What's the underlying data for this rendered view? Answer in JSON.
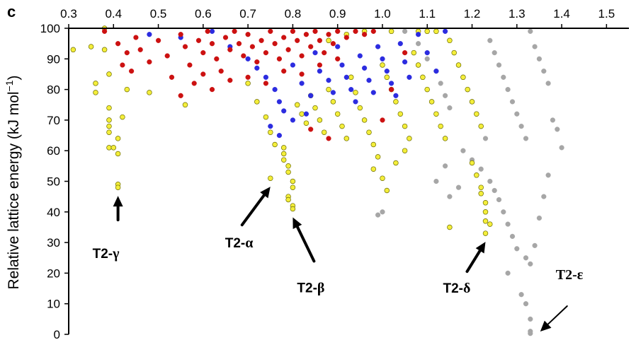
{
  "chart_data": {
    "type": "scatter",
    "panel_label": "c",
    "ylabel_main": "Relative lattice energy (kJ mol",
    "ylabel_sup": "−1",
    "ylabel_tail": ")",
    "xlim": [
      0.3,
      1.55
    ],
    "ylim": [
      0,
      100
    ],
    "x_ticks": [
      "0.3",
      "0.4",
      "0.5",
      "0.6",
      "0.7",
      "0.8",
      "0.9",
      "1.0",
      "1.1",
      "1.2",
      "1.3",
      "1.4",
      "1.5"
    ],
    "y_ticks": [
      "0",
      "10",
      "20",
      "30",
      "40",
      "50",
      "60",
      "70",
      "80",
      "90",
      "100"
    ],
    "x_axis_position": "top",
    "grid": false,
    "colors": {
      "red": "#cc1111",
      "blue": "#2c2ce0",
      "yellow": "#f4ee3a",
      "gray": "#a6a6a6",
      "yellow_edge": "#6b6b00"
    },
    "series": [
      {
        "color": "red",
        "points": [
          [
            0.38,
            99
          ],
          [
            0.41,
            95
          ],
          [
            0.42,
            88
          ],
          [
            0.43,
            92
          ],
          [
            0.44,
            86
          ],
          [
            0.45,
            97
          ],
          [
            0.46,
            93
          ],
          [
            0.48,
            89
          ],
          [
            0.5,
            96
          ],
          [
            0.52,
            91
          ],
          [
            0.53,
            84
          ],
          [
            0.55,
            98
          ],
          [
            0.56,
            94
          ],
          [
            0.57,
            88
          ],
          [
            0.58,
            82
          ],
          [
            0.59,
            96
          ],
          [
            0.6,
            92
          ],
          [
            0.61,
            99
          ],
          [
            0.62,
            95
          ],
          [
            0.63,
            90
          ],
          [
            0.64,
            86
          ],
          [
            0.65,
            97
          ],
          [
            0.66,
            93
          ],
          [
            0.67,
            99
          ],
          [
            0.68,
            95
          ],
          [
            0.69,
            91
          ],
          [
            0.7,
            98
          ],
          [
            0.71,
            94
          ],
          [
            0.72,
            89
          ],
          [
            0.73,
            96
          ],
          [
            0.74,
            92
          ],
          [
            0.75,
            99
          ],
          [
            0.76,
            95
          ],
          [
            0.77,
            90
          ],
          [
            0.78,
            97
          ],
          [
            0.79,
            93
          ],
          [
            0.8,
            99
          ],
          [
            0.81,
            96
          ],
          [
            0.82,
            91
          ],
          [
            0.83,
            98
          ],
          [
            0.84,
            94
          ],
          [
            0.85,
            99
          ],
          [
            0.86,
            96
          ],
          [
            0.87,
            92
          ],
          [
            0.88,
            98
          ],
          [
            0.89,
            95
          ],
          [
            0.9,
            99
          ],
          [
            0.92,
            97
          ],
          [
            0.94,
            99
          ],
          [
            0.96,
            98
          ],
          [
            0.98,
            99
          ],
          [
            0.55,
            78
          ],
          [
            0.6,
            85
          ],
          [
            0.62,
            80
          ],
          [
            0.66,
            83
          ],
          [
            0.7,
            84
          ],
          [
            0.74,
            82
          ],
          [
            0.78,
            86
          ],
          [
            0.82,
            85
          ],
          [
            0.86,
            88
          ],
          [
            0.9,
            90
          ],
          [
            1.0,
            70
          ],
          [
            1.02,
            80
          ],
          [
            1.05,
            92
          ],
          [
            0.88,
            64
          ],
          [
            0.84,
            67
          ]
        ]
      },
      {
        "color": "blue",
        "points": [
          [
            0.48,
            98
          ],
          [
            0.55,
            97
          ],
          [
            0.62,
            99
          ],
          [
            0.66,
            94
          ],
          [
            0.7,
            90
          ],
          [
            0.72,
            87
          ],
          [
            0.74,
            84
          ],
          [
            0.76,
            80
          ],
          [
            0.77,
            76
          ],
          [
            0.78,
            73
          ],
          [
            0.8,
            88
          ],
          [
            0.82,
            82
          ],
          [
            0.84,
            78
          ],
          [
            0.85,
            92
          ],
          [
            0.86,
            86
          ],
          [
            0.88,
            83
          ],
          [
            0.89,
            79
          ],
          [
            0.9,
            94
          ],
          [
            0.91,
            88
          ],
          [
            0.92,
            84
          ],
          [
            0.93,
            80
          ],
          [
            0.94,
            76
          ],
          [
            0.95,
            91
          ],
          [
            0.96,
            87
          ],
          [
            0.97,
            83
          ],
          [
            0.98,
            79
          ],
          [
            0.99,
            94
          ],
          [
            1.0,
            90
          ],
          [
            1.01,
            86
          ],
          [
            1.02,
            82
          ],
          [
            1.03,
            78
          ],
          [
            1.04,
            95
          ],
          [
            1.05,
            89
          ],
          [
            1.06,
            84
          ],
          [
            1.08,
            98
          ],
          [
            1.1,
            92
          ],
          [
            1.12,
            86
          ],
          [
            1.14,
            99
          ],
          [
            0.75,
            68
          ],
          [
            0.77,
            65
          ],
          [
            0.8,
            70
          ],
          [
            0.83,
            72
          ]
        ]
      },
      {
        "color": "yellow",
        "points": [
          [
            0.31,
            93
          ],
          [
            0.35,
            94
          ],
          [
            0.36,
            82
          ],
          [
            0.36,
            79
          ],
          [
            0.38,
            100
          ],
          [
            0.38,
            93
          ],
          [
            0.39,
            85
          ],
          [
            0.39,
            74
          ],
          [
            0.39,
            70
          ],
          [
            0.39,
            68
          ],
          [
            0.39,
            66
          ],
          [
            0.39,
            61
          ],
          [
            0.4,
            61
          ],
          [
            0.41,
            59
          ],
          [
            0.41,
            64
          ],
          [
            0.42,
            71
          ],
          [
            0.41,
            49
          ],
          [
            0.41,
            48
          ],
          [
            0.43,
            80
          ],
          [
            0.48,
            79
          ],
          [
            0.56,
            75
          ],
          [
            0.7,
            82
          ],
          [
            0.72,
            76
          ],
          [
            0.74,
            71
          ],
          [
            0.75,
            66
          ],
          [
            0.76,
            62
          ],
          [
            0.75,
            51
          ],
          [
            0.78,
            57
          ],
          [
            0.78,
            59
          ],
          [
            0.78,
            61
          ],
          [
            0.79,
            55
          ],
          [
            0.79,
            53
          ],
          [
            0.8,
            50
          ],
          [
            0.8,
            48
          ],
          [
            0.79,
            45
          ],
          [
            0.79,
            44
          ],
          [
            0.8,
            42
          ],
          [
            0.8,
            41
          ],
          [
            0.81,
            75
          ],
          [
            0.82,
            72
          ],
          [
            0.83,
            69
          ],
          [
            0.84,
            78
          ],
          [
            0.85,
            74
          ],
          [
            0.86,
            70
          ],
          [
            0.87,
            66
          ],
          [
            0.88,
            80
          ],
          [
            0.89,
            76
          ],
          [
            0.9,
            72
          ],
          [
            0.91,
            68
          ],
          [
            0.92,
            64
          ],
          [
            0.93,
            84
          ],
          [
            0.94,
            79
          ],
          [
            0.95,
            74
          ],
          [
            0.96,
            70
          ],
          [
            0.97,
            66
          ],
          [
            0.98,
            62
          ],
          [
            0.99,
            58
          ],
          [
            1.0,
            88
          ],
          [
            1.01,
            84
          ],
          [
            1.02,
            80
          ],
          [
            1.03,
            76
          ],
          [
            1.04,
            72
          ],
          [
            1.05,
            68
          ],
          [
            1.06,
            64
          ],
          [
            1.07,
            92
          ],
          [
            1.08,
            88
          ],
          [
            1.09,
            84
          ],
          [
            1.1,
            80
          ],
          [
            1.11,
            76
          ],
          [
            1.12,
            72
          ],
          [
            1.13,
            68
          ],
          [
            1.14,
            64
          ],
          [
            1.15,
            96
          ],
          [
            1.16,
            92
          ],
          [
            1.17,
            88
          ],
          [
            1.18,
            84
          ],
          [
            1.19,
            80
          ],
          [
            1.2,
            76
          ],
          [
            1.21,
            72
          ],
          [
            1.22,
            68
          ],
          [
            1.2,
            56
          ],
          [
            1.21,
            52
          ],
          [
            1.22,
            48
          ],
          [
            1.22,
            46
          ],
          [
            1.23,
            43
          ],
          [
            1.23,
            40
          ],
          [
            1.23,
            37
          ],
          [
            1.24,
            36
          ],
          [
            1.23,
            33
          ],
          [
            1.15,
            35
          ],
          [
            0.98,
            54
          ],
          [
            1.0,
            51
          ],
          [
            1.01,
            47
          ],
          [
            1.03,
            56
          ],
          [
            1.05,
            60
          ],
          [
            1.08,
            99
          ],
          [
            1.1,
            99
          ],
          [
            1.12,
            99
          ],
          [
            1.02,
            99
          ],
          [
            0.96,
            99
          ],
          [
            0.92,
            98
          ],
          [
            0.88,
            96
          ]
        ]
      },
      {
        "color": "gray",
        "points": [
          [
            1.0,
            40
          ],
          [
            0.99,
            39
          ],
          [
            1.05,
            99
          ],
          [
            1.08,
            95
          ],
          [
            1.1,
            90
          ],
          [
            1.12,
            86
          ],
          [
            1.13,
            82
          ],
          [
            1.14,
            78
          ],
          [
            1.15,
            74
          ],
          [
            1.16,
            92
          ],
          [
            1.17,
            88
          ],
          [
            1.18,
            84
          ],
          [
            1.19,
            80
          ],
          [
            1.2,
            76
          ],
          [
            1.21,
            72
          ],
          [
            1.22,
            68
          ],
          [
            1.23,
            64
          ],
          [
            1.24,
            96
          ],
          [
            1.25,
            92
          ],
          [
            1.26,
            88
          ],
          [
            1.27,
            84
          ],
          [
            1.28,
            80
          ],
          [
            1.29,
            76
          ],
          [
            1.3,
            72
          ],
          [
            1.31,
            68
          ],
          [
            1.32,
            64
          ],
          [
            1.33,
            99
          ],
          [
            1.34,
            94
          ],
          [
            1.35,
            90
          ],
          [
            1.36,
            86
          ],
          [
            1.37,
            82
          ],
          [
            1.38,
            70
          ],
          [
            1.39,
            67
          ],
          [
            1.4,
            61
          ],
          [
            1.18,
            60
          ],
          [
            1.2,
            57
          ],
          [
            1.22,
            54
          ],
          [
            1.24,
            50
          ],
          [
            1.25,
            47
          ],
          [
            1.26,
            44
          ],
          [
            1.27,
            40
          ],
          [
            1.28,
            36
          ],
          [
            1.29,
            32
          ],
          [
            1.3,
            28
          ],
          [
            1.32,
            25
          ],
          [
            1.33,
            23
          ],
          [
            1.34,
            29
          ],
          [
            1.35,
            38
          ],
          [
            1.36,
            45
          ],
          [
            1.37,
            52
          ],
          [
            1.28,
            20
          ],
          [
            1.31,
            13
          ],
          [
            1.32,
            10
          ],
          [
            1.33,
            5
          ],
          [
            1.33,
            1
          ],
          [
            1.33,
            0.3
          ],
          [
            1.14,
            55
          ],
          [
            1.12,
            50
          ],
          [
            1.15,
            45
          ],
          [
            1.17,
            48
          ]
        ]
      }
    ],
    "annotations": [
      {
        "label": "T2-",
        "greek": "γ",
        "point": [
          0.41,
          48
        ]
      },
      {
        "label": "T2-",
        "greek": "α",
        "point": [
          0.75,
          51
        ]
      },
      {
        "label": "T2-",
        "greek": "β",
        "point": [
          0.8,
          41
        ]
      },
      {
        "label": "T2-",
        "greek": "δ",
        "point": [
          1.23,
          33
        ]
      },
      {
        "label": "T2-ε",
        "greek": "",
        "point": [
          1.33,
          0
        ]
      }
    ]
  }
}
